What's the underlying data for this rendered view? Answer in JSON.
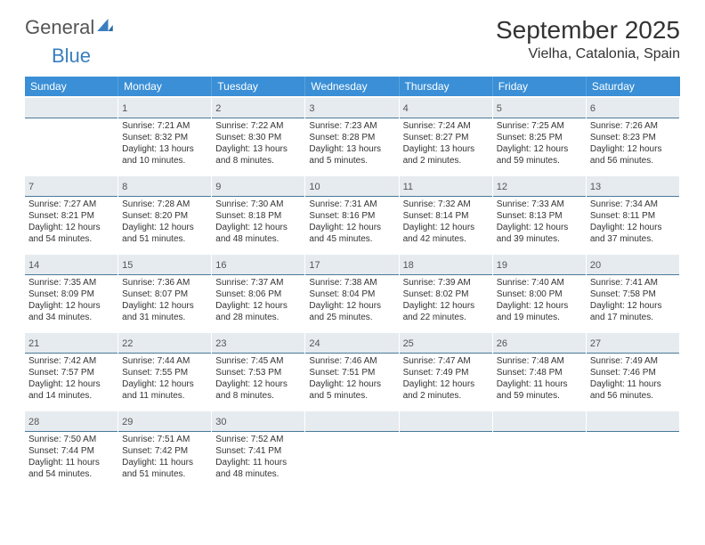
{
  "logo": {
    "general": "General",
    "blue": "Blue"
  },
  "header": {
    "title": "September 2025",
    "location": "Vielha, Catalonia, Spain"
  },
  "weekdays": [
    "Sunday",
    "Monday",
    "Tuesday",
    "Wednesday",
    "Thursday",
    "Friday",
    "Saturday"
  ],
  "colors": {
    "weekday_bg": "#3a8fd6",
    "weekday_text": "#ffffff",
    "daynum_bg": "#e6ebef",
    "daynum_border": "#4a7a9a",
    "logo_blue": "#3a7ebf",
    "text": "#333333",
    "background": "#ffffff"
  },
  "first_weekday_offset": 1,
  "days": [
    {
      "n": 1,
      "sunrise": "7:21 AM",
      "sunset": "8:32 PM",
      "daylight": "13 hours and 10 minutes."
    },
    {
      "n": 2,
      "sunrise": "7:22 AM",
      "sunset": "8:30 PM",
      "daylight": "13 hours and 8 minutes."
    },
    {
      "n": 3,
      "sunrise": "7:23 AM",
      "sunset": "8:28 PM",
      "daylight": "13 hours and 5 minutes."
    },
    {
      "n": 4,
      "sunrise": "7:24 AM",
      "sunset": "8:27 PM",
      "daylight": "13 hours and 2 minutes."
    },
    {
      "n": 5,
      "sunrise": "7:25 AM",
      "sunset": "8:25 PM",
      "daylight": "12 hours and 59 minutes."
    },
    {
      "n": 6,
      "sunrise": "7:26 AM",
      "sunset": "8:23 PM",
      "daylight": "12 hours and 56 minutes."
    },
    {
      "n": 7,
      "sunrise": "7:27 AM",
      "sunset": "8:21 PM",
      "daylight": "12 hours and 54 minutes."
    },
    {
      "n": 8,
      "sunrise": "7:28 AM",
      "sunset": "8:20 PM",
      "daylight": "12 hours and 51 minutes."
    },
    {
      "n": 9,
      "sunrise": "7:30 AM",
      "sunset": "8:18 PM",
      "daylight": "12 hours and 48 minutes."
    },
    {
      "n": 10,
      "sunrise": "7:31 AM",
      "sunset": "8:16 PM",
      "daylight": "12 hours and 45 minutes."
    },
    {
      "n": 11,
      "sunrise": "7:32 AM",
      "sunset": "8:14 PM",
      "daylight": "12 hours and 42 minutes."
    },
    {
      "n": 12,
      "sunrise": "7:33 AM",
      "sunset": "8:13 PM",
      "daylight": "12 hours and 39 minutes."
    },
    {
      "n": 13,
      "sunrise": "7:34 AM",
      "sunset": "8:11 PM",
      "daylight": "12 hours and 37 minutes."
    },
    {
      "n": 14,
      "sunrise": "7:35 AM",
      "sunset": "8:09 PM",
      "daylight": "12 hours and 34 minutes."
    },
    {
      "n": 15,
      "sunrise": "7:36 AM",
      "sunset": "8:07 PM",
      "daylight": "12 hours and 31 minutes."
    },
    {
      "n": 16,
      "sunrise": "7:37 AM",
      "sunset": "8:06 PM",
      "daylight": "12 hours and 28 minutes."
    },
    {
      "n": 17,
      "sunrise": "7:38 AM",
      "sunset": "8:04 PM",
      "daylight": "12 hours and 25 minutes."
    },
    {
      "n": 18,
      "sunrise": "7:39 AM",
      "sunset": "8:02 PM",
      "daylight": "12 hours and 22 minutes."
    },
    {
      "n": 19,
      "sunrise": "7:40 AM",
      "sunset": "8:00 PM",
      "daylight": "12 hours and 19 minutes."
    },
    {
      "n": 20,
      "sunrise": "7:41 AM",
      "sunset": "7:58 PM",
      "daylight": "12 hours and 17 minutes."
    },
    {
      "n": 21,
      "sunrise": "7:42 AM",
      "sunset": "7:57 PM",
      "daylight": "12 hours and 14 minutes."
    },
    {
      "n": 22,
      "sunrise": "7:44 AM",
      "sunset": "7:55 PM",
      "daylight": "12 hours and 11 minutes."
    },
    {
      "n": 23,
      "sunrise": "7:45 AM",
      "sunset": "7:53 PM",
      "daylight": "12 hours and 8 minutes."
    },
    {
      "n": 24,
      "sunrise": "7:46 AM",
      "sunset": "7:51 PM",
      "daylight": "12 hours and 5 minutes."
    },
    {
      "n": 25,
      "sunrise": "7:47 AM",
      "sunset": "7:49 PM",
      "daylight": "12 hours and 2 minutes."
    },
    {
      "n": 26,
      "sunrise": "7:48 AM",
      "sunset": "7:48 PM",
      "daylight": "11 hours and 59 minutes."
    },
    {
      "n": 27,
      "sunrise": "7:49 AM",
      "sunset": "7:46 PM",
      "daylight": "11 hours and 56 minutes."
    },
    {
      "n": 28,
      "sunrise": "7:50 AM",
      "sunset": "7:44 PM",
      "daylight": "11 hours and 54 minutes."
    },
    {
      "n": 29,
      "sunrise": "7:51 AM",
      "sunset": "7:42 PM",
      "daylight": "11 hours and 51 minutes."
    },
    {
      "n": 30,
      "sunrise": "7:52 AM",
      "sunset": "7:41 PM",
      "daylight": "11 hours and 48 minutes."
    }
  ],
  "labels": {
    "sunrise": "Sunrise:",
    "sunset": "Sunset:",
    "daylight": "Daylight:"
  }
}
